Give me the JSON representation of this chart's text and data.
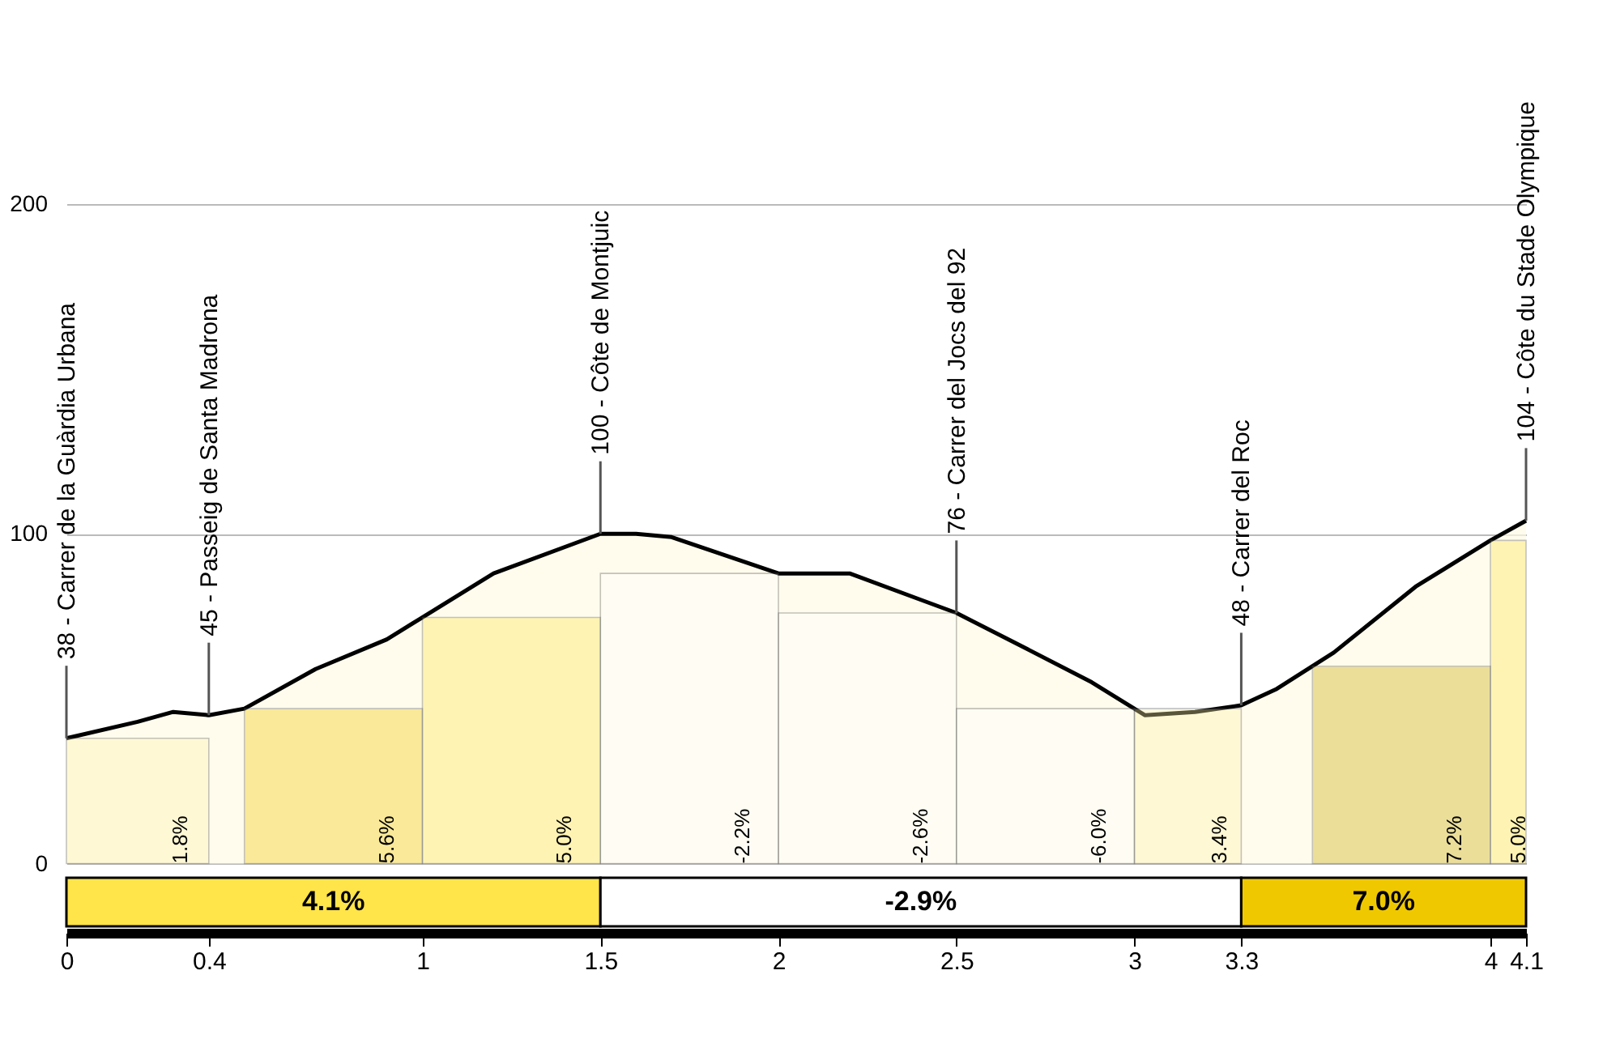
{
  "chart_data": {
    "type": "area",
    "x": [
      0,
      0.2,
      0.3,
      0.4,
      0.5,
      0.7,
      0.9,
      1.2,
      1.5,
      1.6,
      1.7,
      2.0,
      2.2,
      2.4,
      2.5,
      2.7,
      2.88,
      3.03,
      3.17,
      3.3,
      3.4,
      3.56,
      3.79,
      4.0,
      4.1
    ],
    "series": [
      {
        "color": "#fffbe6",
        "values": [
          38,
          43,
          46,
          45,
          47,
          59,
          68,
          88,
          100,
          100,
          99,
          88,
          88,
          80,
          76,
          65,
          55,
          45,
          46,
          48,
          53,
          64,
          84,
          98,
          104
        ]
      }
    ],
    "xlim": [
      0,
      4.1
    ],
    "xticks": [
      0,
      0.4,
      1,
      1.5,
      2,
      2.5,
      3,
      3.3,
      4,
      4.1
    ],
    "ylim": [
      -20,
      200
    ],
    "yticks": [
      0,
      100,
      200
    ],
    "grid": "y",
    "annotations": [
      {
        "text": "38 - Carrer de la Guàrdia Urbana",
        "x": 0,
        "y": 38
      },
      {
        "text": "45 - Passeig de Santa Madrona",
        "x": 0.4,
        "y": 45
      },
      {
        "text": "100 - Côte de Montjuic",
        "x": 1.5,
        "y": 100
      },
      {
        "text": "76 - Carrer del Jocs del 92",
        "x": 2.5,
        "y": 76
      },
      {
        "text": "48 - Carrer del Roc",
        "x": 3.3,
        "y": 48
      },
      {
        "text": "104 - Côte du Stade Olympique",
        "x": 4.1,
        "y": 104
      }
    ],
    "bands": [
      {
        "axis": "x",
        "from": 0,
        "to": 0.4,
        "label": "1.8%",
        "color": "#fff3a8"
      },
      {
        "axis": "x",
        "from": 0.5,
        "to": 1,
        "label": "5.6%",
        "color": "#f0c800"
      },
      {
        "axis": "x",
        "from": 1,
        "to": 1.5,
        "label": "5.0%",
        "color": "#ffe44a"
      },
      {
        "axis": "x",
        "from": 1.5,
        "to": 2,
        "label": "-2.2%",
        "color": "#ffffff"
      },
      {
        "axis": "x",
        "from": 2,
        "to": 2.5,
        "label": "-2.6%",
        "color": "#ffffff"
      },
      {
        "axis": "x",
        "from": 2.5,
        "to": 3,
        "label": "-6.0%",
        "color": "#ffffff"
      },
      {
        "axis": "x",
        "from": 3,
        "to": 3.3,
        "label": "3.4%",
        "color": "#fff3a8"
      },
      {
        "axis": "x",
        "from": 3.5,
        "to": 4,
        "label": "7.2%",
        "color": "#c8a800"
      },
      {
        "axis": "x",
        "from": 4,
        "to": 4.1,
        "label": "5.0%",
        "color": "#ffe44a"
      },
      {
        "axis": "x",
        "from": 0,
        "to": 1.5,
        "label": "4.1%",
        "color": "#ffe44a"
      },
      {
        "axis": "x",
        "from": 1.5,
        "to": 3.3,
        "label": "-2.9%",
        "color": "#ffffff"
      },
      {
        "axis": "x",
        "from": 3.3,
        "to": 4.1,
        "label": "7.0%",
        "color": "#f0c800"
      }
    ]
  }
}
